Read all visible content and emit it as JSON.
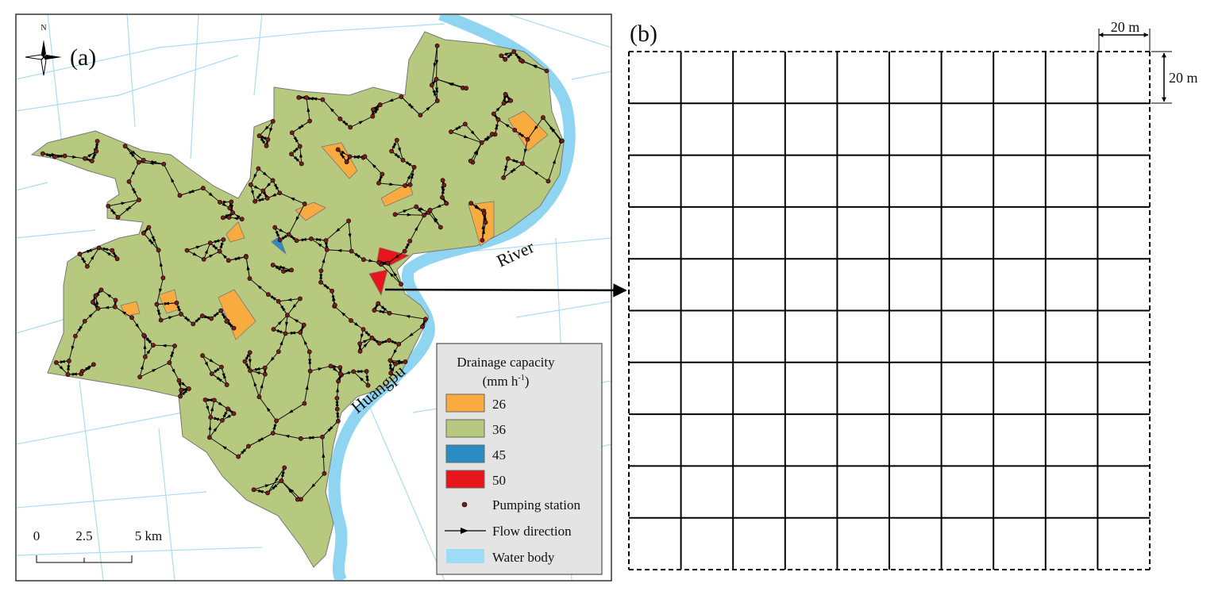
{
  "panel_a": {
    "label": "(a)",
    "north": "N",
    "river_names": [
      "River",
      "Huangpu"
    ],
    "legend": {
      "title": "Drainage capacity",
      "unit": {
        "base": "(mm h",
        "exponent": "-1",
        "close": ")"
      },
      "classes": [
        {
          "value": 26,
          "color": "#f9ab40"
        },
        {
          "value": 36,
          "color": "#b6c97f"
        },
        {
          "value": 45,
          "color": "#2b8cc4"
        },
        {
          "value": 50,
          "color": "#e8161b"
        }
      ],
      "symbols": [
        "Pumping station",
        "Flow direction",
        "Water body"
      ]
    },
    "scale_bar": [
      "0",
      "2.5",
      "5 km"
    ]
  },
  "panel_b": {
    "label": "(b)",
    "cell_width": "20 m",
    "cell_height": "20 m"
  }
}
